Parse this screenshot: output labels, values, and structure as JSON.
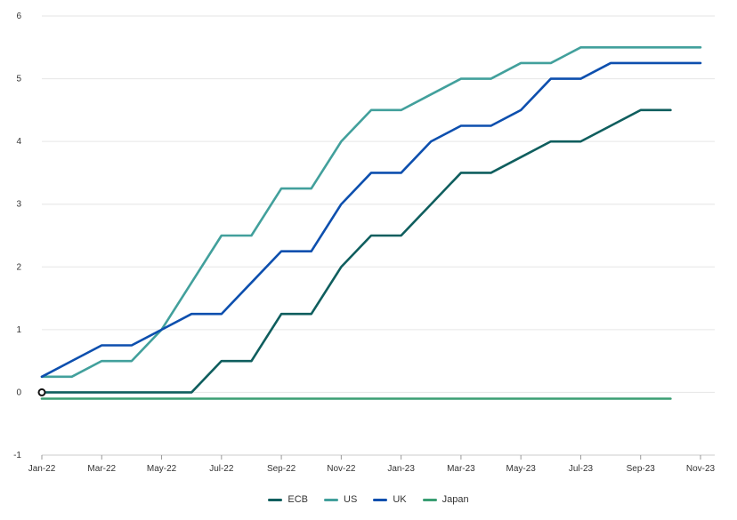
{
  "chart_data": {
    "type": "line",
    "title": "",
    "xlabel": "",
    "ylabel": "",
    "ylim": [
      -1,
      6
    ],
    "yticks": [
      -1,
      0,
      1,
      2,
      3,
      4,
      5,
      6
    ],
    "x_tick_labels": [
      "Jan-22",
      "Mar-22",
      "May-22",
      "Jul-22",
      "Sep-22",
      "Nov-22",
      "Jan-23",
      "Mar-23",
      "May-23",
      "Jul-23",
      "Sep-23",
      "Nov-23"
    ],
    "grid": "horizontal",
    "legend_position": "bottom-center",
    "x": [
      "Jan-22",
      "Feb-22",
      "Mar-22",
      "Apr-22",
      "May-22",
      "Jun-22",
      "Jul-22",
      "Aug-22",
      "Sep-22",
      "Oct-22",
      "Nov-22",
      "Dec-22",
      "Jan-23",
      "Feb-23",
      "Mar-23",
      "Apr-23",
      "May-23",
      "Jun-23",
      "Jul-23",
      "Aug-23",
      "Sep-23",
      "Oct-23",
      "Nov-23"
    ],
    "series": [
      {
        "name": "ECB",
        "color": "#0f5e5e",
        "values": [
          0,
          0,
          0,
          0,
          0,
          0,
          0.5,
          0.5,
          1.25,
          1.25,
          2,
          2.5,
          2.5,
          3,
          3.5,
          3.5,
          3.75,
          4,
          4,
          4.25,
          4.5,
          4.5,
          null
        ]
      },
      {
        "name": "US",
        "color": "#42a09c",
        "values": [
          0.25,
          0.25,
          0.5,
          0.5,
          1,
          1.75,
          2.5,
          2.5,
          3.25,
          3.25,
          4,
          4.5,
          4.5,
          4.75,
          5,
          5,
          5.25,
          5.25,
          5.5,
          5.5,
          5.5,
          5.5,
          5.5
        ]
      },
      {
        "name": "UK",
        "color": "#0d4fae",
        "values": [
          0.25,
          0.5,
          0.75,
          0.75,
          1,
          1.25,
          1.25,
          1.75,
          2.25,
          2.25,
          3,
          3.5,
          3.5,
          4,
          4.25,
          4.25,
          4.5,
          5,
          5,
          5.25,
          5.25,
          5.25,
          5.25
        ]
      },
      {
        "name": "Japan",
        "color": "#3a9e73",
        "values": [
          -0.1,
          -0.1,
          -0.1,
          -0.1,
          -0.1,
          -0.1,
          -0.1,
          -0.1,
          -0.1,
          -0.1,
          -0.1,
          -0.1,
          -0.1,
          -0.1,
          -0.1,
          -0.1,
          -0.1,
          -0.1,
          -0.1,
          -0.1,
          -0.1,
          -0.1,
          null
        ]
      }
    ],
    "highlight_point": {
      "series": "ECB",
      "x": "Jan-22",
      "y": 0
    }
  }
}
